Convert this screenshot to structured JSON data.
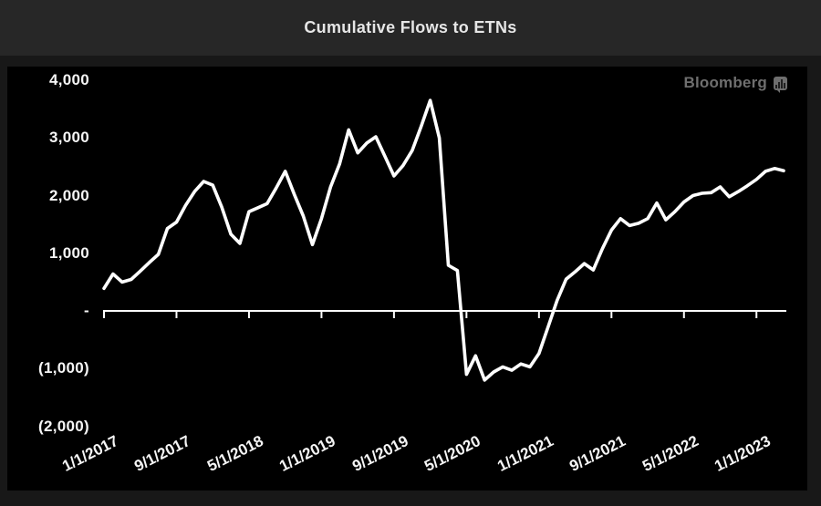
{
  "header": {
    "title": "Cumulative Flows to ETNs"
  },
  "branding": {
    "label": "Bloomberg",
    "icon": "bar-chart-bubble-icon"
  },
  "colors": {
    "outer_background": "#181818",
    "titlebar_background": "#272727",
    "panel_background": "#000000",
    "title_text": "#e6e6e6",
    "axis_text": "#f5f5f5",
    "brand_text": "#6f6f6f",
    "line": "#ffffff",
    "baseline": "#ffffff"
  },
  "chart_data": {
    "type": "line",
    "title": "Cumulative Flows to ETNs",
    "series_name": "Cumulative flows to ETNs",
    "legend": "none",
    "grid": "none (zero baseline with ticks only)",
    "line_color": "#ffffff",
    "background": "#000000",
    "ylim": [
      -2000,
      4000
    ],
    "y_tick_values": [
      4000,
      3000,
      2000,
      1000,
      0,
      -1000,
      -2000
    ],
    "y_tick_labels": [
      "4,000",
      "3,000",
      "2,000",
      "1,000",
      "-",
      "(1,000)",
      "(2,000)"
    ],
    "x_tick_labels": [
      "1/1/2017",
      "9/1/2017",
      "5/1/2018",
      "1/1/2019",
      "9/1/2019",
      "5/1/2020",
      "1/1/2021",
      "9/1/2021",
      "5/1/2022",
      "1/1/2023"
    ],
    "x_tick_interval_months": 8,
    "x": [
      "1/1/2017",
      "2/1/2017",
      "3/1/2017",
      "4/1/2017",
      "5/1/2017",
      "6/1/2017",
      "7/1/2017",
      "8/1/2017",
      "9/1/2017",
      "10/1/2017",
      "11/1/2017",
      "12/1/2017",
      "1/1/2018",
      "2/1/2018",
      "3/1/2018",
      "4/1/2018",
      "5/1/2018",
      "6/1/2018",
      "7/1/2018",
      "8/1/2018",
      "9/1/2018",
      "10/1/2018",
      "11/1/2018",
      "12/1/2018",
      "1/1/2019",
      "2/1/2019",
      "3/1/2019",
      "4/1/2019",
      "5/1/2019",
      "6/1/2019",
      "7/1/2019",
      "8/1/2019",
      "9/1/2019",
      "10/1/2019",
      "11/1/2019",
      "12/1/2019",
      "1/1/2020",
      "2/1/2020",
      "3/1/2020",
      "4/1/2020",
      "5/1/2020",
      "6/1/2020",
      "7/1/2020",
      "8/1/2020",
      "9/1/2020",
      "10/1/2020",
      "11/1/2020",
      "12/1/2020",
      "1/1/2021",
      "2/1/2021",
      "3/1/2021",
      "4/1/2021",
      "5/1/2021",
      "6/1/2021",
      "7/1/2021",
      "8/1/2021",
      "9/1/2021",
      "10/1/2021",
      "11/1/2021",
      "12/1/2021",
      "1/1/2022",
      "2/1/2022",
      "3/1/2022",
      "4/1/2022",
      "5/1/2022",
      "6/1/2022",
      "7/1/2022",
      "8/1/2022",
      "9/1/2022",
      "10/1/2022",
      "11/1/2022",
      "12/1/2022",
      "1/1/2023",
      "2/1/2023",
      "3/1/2023",
      "4/1/2023"
    ],
    "values": [
      390,
      640,
      500,
      545,
      690,
      840,
      980,
      1430,
      1540,
      1830,
      2070,
      2245,
      2180,
      1800,
      1330,
      1170,
      1720,
      1790,
      1860,
      2130,
      2420,
      2020,
      1645,
      1150,
      1600,
      2150,
      2550,
      3140,
      2740,
      2910,
      3020,
      2680,
      2340,
      2520,
      2780,
      3200,
      3650,
      3000,
      790,
      700,
      -1100,
      -780,
      -1200,
      -1060,
      -970,
      -1030,
      -920,
      -970,
      -740,
      -280,
      180,
      550,
      680,
      820,
      710,
      1080,
      1400,
      1600,
      1480,
      1520,
      1600,
      1870,
      1580,
      1720,
      1890,
      2000,
      2040,
      2050,
      2150,
      1980,
      2070,
      2170,
      2280,
      2420,
      2470,
      2430
    ]
  }
}
